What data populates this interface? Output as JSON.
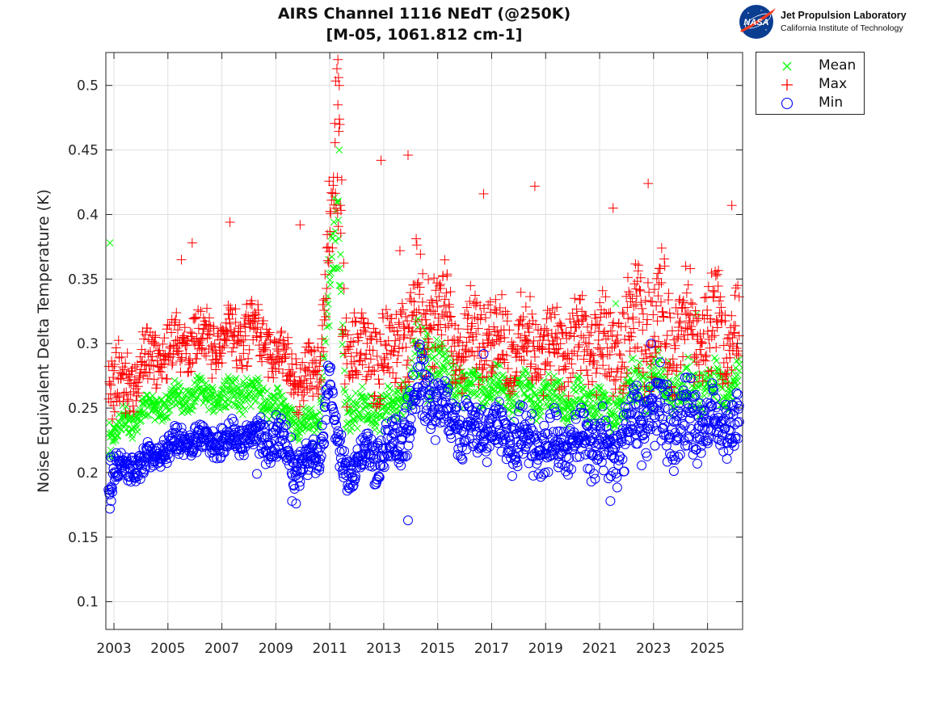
{
  "chart_data": {
    "type": "scatter",
    "title": "AIRS Channel 1116 NEdT (@250K)",
    "subtitle": "[M-05, 1061.812 cm-1]",
    "xlabel": "",
    "ylabel": "Noise Equivalent Delta Temperature (K)",
    "xlim": [
      2002.7,
      2026.3
    ],
    "ylim": [
      0.0785,
      0.5255
    ],
    "x_ticks": [
      2003,
      2005,
      2007,
      2009,
      2011,
      2013,
      2015,
      2017,
      2019,
      2021,
      2023,
      2025
    ],
    "x_tick_labels": [
      "2003",
      "2005",
      "2007",
      "2009",
      "2011",
      "2013",
      "2015",
      "2017",
      "2019",
      "2021",
      "2023",
      "2025"
    ],
    "y_ticks": [
      0.1,
      0.15,
      0.2,
      0.25,
      0.3,
      0.35,
      0.4,
      0.45,
      0.5
    ],
    "y_tick_labels": [
      "0.1",
      "0.15",
      "0.2",
      "0.25",
      "0.3",
      "0.35",
      "0.4",
      "0.45",
      "0.5"
    ],
    "grid": true,
    "legend_position": "outside-top-right",
    "legend": [
      "Mean",
      "Max",
      "Min"
    ],
    "series": [
      {
        "name": "Mean",
        "marker": "x",
        "color": "#00ff00",
        "envelope": {
          "x": [
            2002.8,
            2003.3,
            2004.0,
            2005.0,
            2006.0,
            2007.0,
            2008.0,
            2009.0,
            2009.8,
            2010.6,
            2011.0,
            2011.3,
            2011.6,
            2012.5,
            2013.5,
            2014.4,
            2015.0,
            2016.0,
            2017.0,
            2018.0,
            2019.0,
            2020.0,
            2021.0,
            2021.4,
            2022.0,
            2023.0,
            2024.0,
            2025.0,
            2026.2
          ],
          "low": [
            0.195,
            0.215,
            0.235,
            0.24,
            0.245,
            0.245,
            0.245,
            0.235,
            0.225,
            0.22,
            0.31,
            0.33,
            0.23,
            0.23,
            0.235,
            0.25,
            0.26,
            0.245,
            0.245,
            0.24,
            0.24,
            0.235,
            0.235,
            0.225,
            0.24,
            0.245,
            0.24,
            0.245,
            0.25
          ],
          "high": [
            0.26,
            0.255,
            0.26,
            0.27,
            0.275,
            0.275,
            0.28,
            0.27,
            0.255,
            0.25,
            0.4,
            0.45,
            0.27,
            0.265,
            0.27,
            0.33,
            0.31,
            0.285,
            0.285,
            0.28,
            0.28,
            0.275,
            0.275,
            0.26,
            0.285,
            0.3,
            0.29,
            0.29,
            0.29
          ]
        },
        "outliers": [
          [
            2002.85,
            0.378
          ],
          [
            2021.6,
            0.331
          ],
          [
            2024.6,
            0.323
          ],
          [
            2011.35,
            0.45
          ]
        ]
      },
      {
        "name": "Max",
        "marker": "+",
        "color": "#ff0000",
        "envelope": {
          "x": [
            2002.8,
            2003.3,
            2004.0,
            2005.0,
            2006.0,
            2007.0,
            2008.0,
            2009.0,
            2009.8,
            2010.6,
            2011.0,
            2011.3,
            2011.6,
            2012.5,
            2013.5,
            2014.4,
            2015.0,
            2016.0,
            2017.0,
            2018.0,
            2019.0,
            2020.0,
            2021.0,
            2021.4,
            2022.0,
            2023.0,
            2024.0,
            2025.0,
            2026.2
          ],
          "low": [
            0.225,
            0.23,
            0.255,
            0.265,
            0.27,
            0.275,
            0.275,
            0.265,
            0.245,
            0.24,
            0.36,
            0.3,
            0.25,
            0.25,
            0.255,
            0.26,
            0.27,
            0.26,
            0.26,
            0.255,
            0.255,
            0.255,
            0.25,
            0.24,
            0.255,
            0.26,
            0.255,
            0.26,
            0.27
          ],
          "high": [
            0.32,
            0.3,
            0.31,
            0.33,
            0.33,
            0.33,
            0.35,
            0.32,
            0.3,
            0.31,
            0.46,
            0.52,
            0.34,
            0.33,
            0.35,
            0.39,
            0.37,
            0.35,
            0.35,
            0.34,
            0.34,
            0.34,
            0.35,
            0.33,
            0.36,
            0.38,
            0.36,
            0.36,
            0.35
          ]
        },
        "outliers": [
          [
            2007.3,
            0.394
          ],
          [
            2009.9,
            0.392
          ],
          [
            2012.9,
            0.442
          ],
          [
            2013.9,
            0.446
          ],
          [
            2016.7,
            0.416
          ],
          [
            2018.6,
            0.422
          ],
          [
            2022.8,
            0.424
          ],
          [
            2025.9,
            0.407
          ],
          [
            2011.3,
            0.52
          ],
          [
            2011.35,
            0.5
          ],
          [
            2011.3,
            0.485
          ],
          [
            2005.9,
            0.378
          ],
          [
            2005.5,
            0.365
          ],
          [
            2021.5,
            0.405
          ],
          [
            2013.6,
            0.372
          ]
        ]
      },
      {
        "name": "Min",
        "marker": "o",
        "color": "#0000ff",
        "envelope": {
          "x": [
            2002.8,
            2003.3,
            2004.0,
            2005.0,
            2006.0,
            2007.0,
            2008.0,
            2009.0,
            2009.8,
            2010.6,
            2011.0,
            2011.3,
            2011.6,
            2012.5,
            2013.5,
            2014.4,
            2015.0,
            2016.0,
            2017.0,
            2018.0,
            2019.0,
            2020.0,
            2021.0,
            2021.4,
            2022.0,
            2023.0,
            2024.0,
            2025.0,
            2026.2
          ],
          "low": [
            0.17,
            0.19,
            0.19,
            0.205,
            0.21,
            0.21,
            0.21,
            0.2,
            0.185,
            0.19,
            0.25,
            0.19,
            0.185,
            0.19,
            0.195,
            0.22,
            0.225,
            0.205,
            0.205,
            0.195,
            0.19,
            0.2,
            0.19,
            0.18,
            0.2,
            0.205,
            0.2,
            0.205,
            0.21
          ],
          "high": [
            0.225,
            0.22,
            0.22,
            0.235,
            0.24,
            0.24,
            0.245,
            0.25,
            0.23,
            0.225,
            0.305,
            0.24,
            0.225,
            0.235,
            0.245,
            0.31,
            0.28,
            0.26,
            0.26,
            0.26,
            0.25,
            0.25,
            0.26,
            0.235,
            0.27,
            0.29,
            0.275,
            0.27,
            0.265
          ]
        },
        "outliers": [
          [
            2013.9,
            0.163
          ],
          [
            2002.85,
            0.172
          ],
          [
            2002.9,
            0.178
          ],
          [
            2009.6,
            0.178
          ],
          [
            2009.75,
            0.176
          ],
          [
            2016.7,
            0.292
          ],
          [
            2022.9,
            0.3
          ],
          [
            2008.3,
            0.199
          ],
          [
            2021.4,
            0.178
          ]
        ]
      }
    ]
  },
  "header": {
    "logo_name": "Jet Propulsion Laboratory",
    "logo_subtitle": "California Institute of Technology",
    "logo_badge": "NASA"
  },
  "legend_labels": [
    "Mean",
    "Max",
    "Min"
  ],
  "colors": {
    "mean": "#00ff00",
    "max": "#ff0000",
    "min": "#0000ff",
    "grid": "#dfdfdf",
    "axis": "#262626"
  }
}
